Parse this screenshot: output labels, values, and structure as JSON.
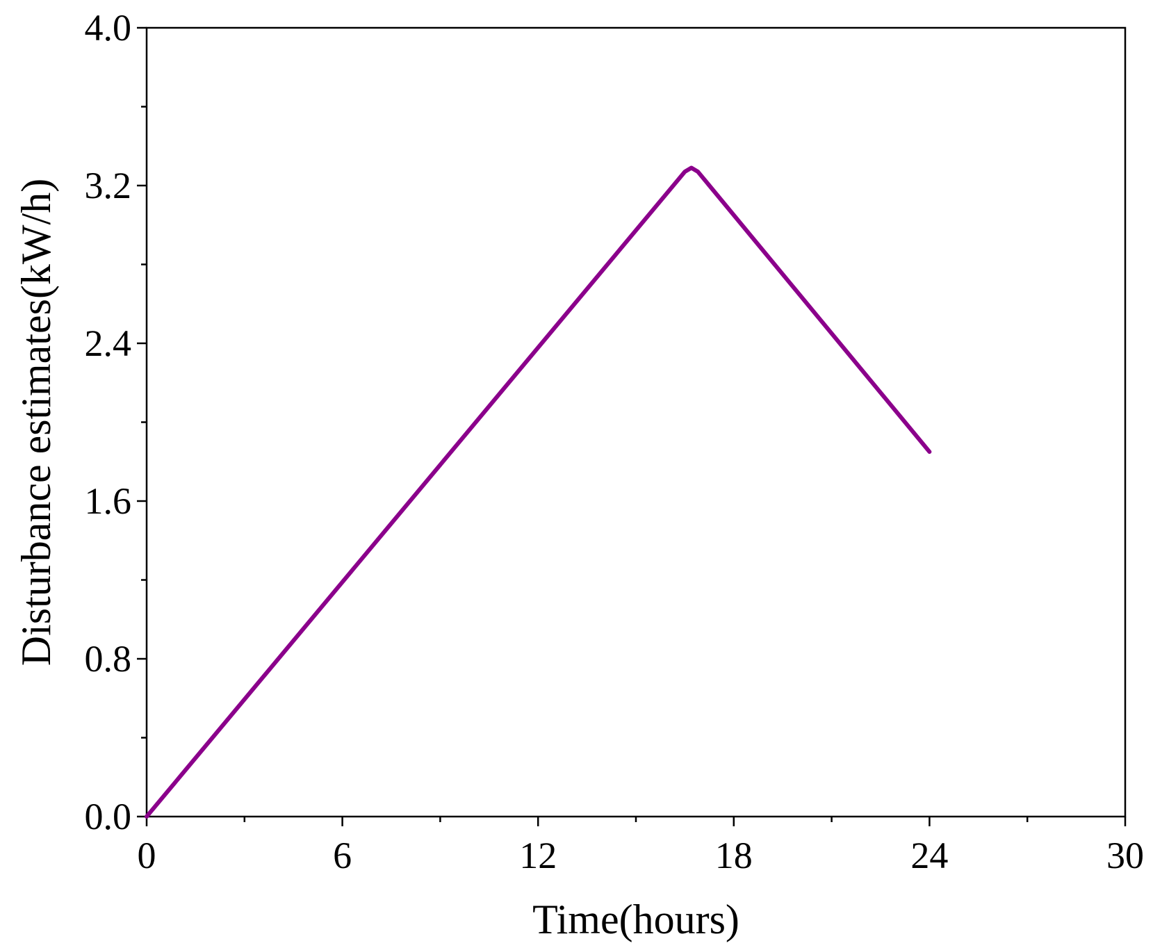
{
  "chart_data": {
    "type": "line",
    "xlabel": "Time(hours)",
    "ylabel": "Disturbance estimates(kW/h)",
    "xlim": [
      0,
      30
    ],
    "ylim": [
      0,
      4.0
    ],
    "xticks": [
      0,
      6,
      12,
      18,
      24,
      30
    ],
    "xtick_labels": [
      "0",
      "6",
      "12",
      "18",
      "24",
      "30"
    ],
    "yticks": [
      0,
      0.8,
      1.6,
      2.4,
      3.2,
      4.0
    ],
    "ytick_labels": [
      "0.0",
      "0.8",
      "1.6",
      "2.4",
      "3.2",
      "4.0"
    ],
    "x_minor_step": 3,
    "y_minor_step": 0.4,
    "grid": false,
    "series": [
      {
        "color": "#8b008b",
        "x": [
          0,
          16.5,
          16.7,
          16.9,
          24
        ],
        "y": [
          0,
          3.27,
          3.29,
          3.27,
          1.85
        ]
      }
    ]
  }
}
